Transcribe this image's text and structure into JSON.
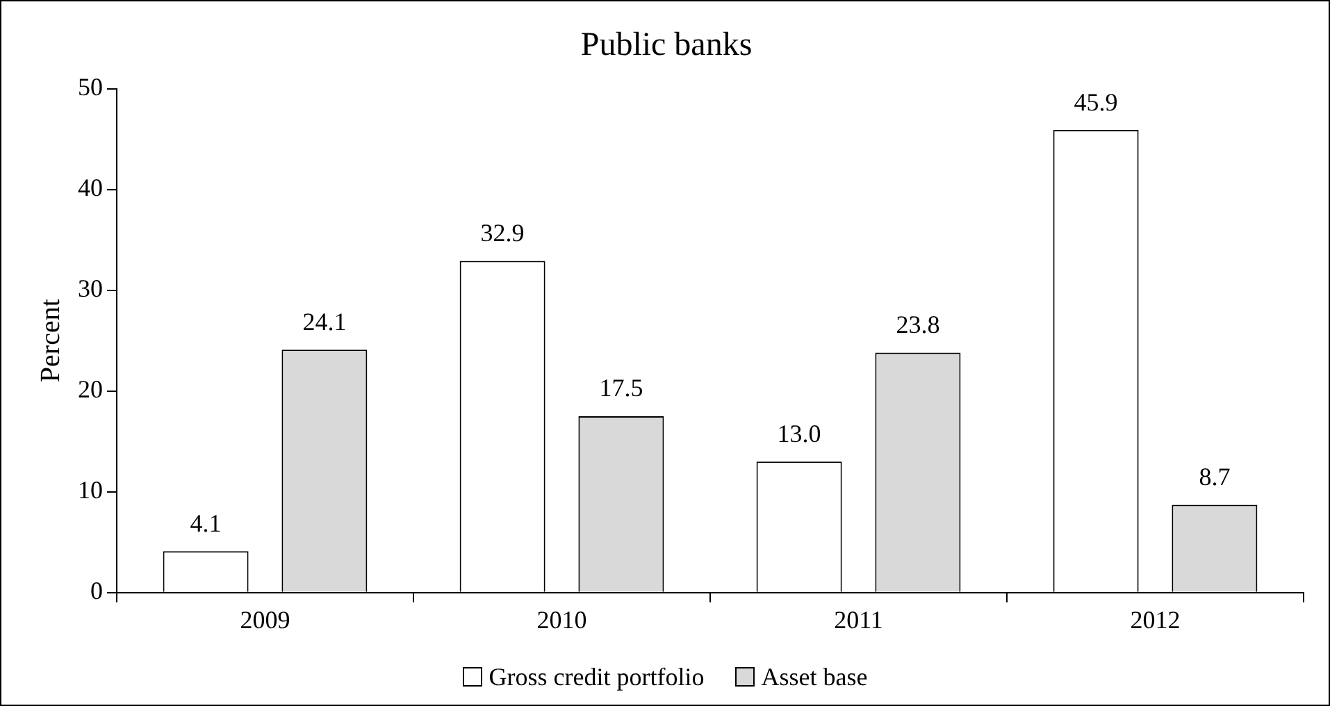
{
  "chart_data": {
    "type": "bar",
    "title": "Public banks",
    "ylabel": "Percent",
    "categories": [
      "2009",
      "2010",
      "2011",
      "2012"
    ],
    "series": [
      {
        "name": "Gross credit portfolio",
        "color": "#ffffff",
        "values": [
          4.1,
          32.9,
          13.0,
          45.9
        ],
        "value_labels": [
          "4.1",
          "32.9",
          "13.0",
          "45.9"
        ]
      },
      {
        "name": "Asset base",
        "color": "#d9d9d9",
        "values": [
          24.1,
          17.5,
          23.8,
          8.7
        ],
        "value_labels": [
          "24.1",
          "17.5",
          "23.8",
          "8.7"
        ]
      }
    ],
    "ylim": [
      0,
      50
    ],
    "yticks": [
      0,
      10,
      20,
      30,
      40,
      50
    ],
    "grid": false,
    "legend": "bottom"
  }
}
